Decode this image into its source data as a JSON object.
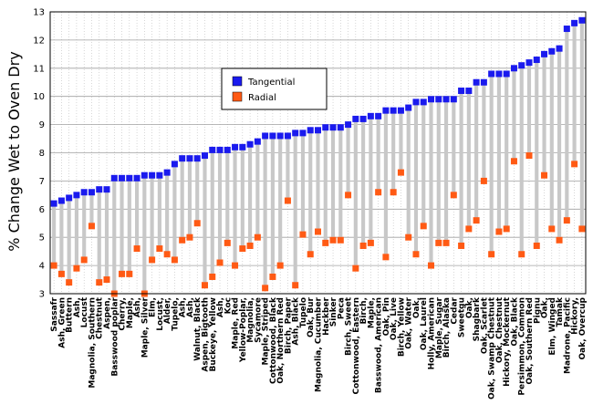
{
  "chart_data": {
    "type": "scatter",
    "title": "",
    "xlabel": "",
    "ylabel": "% Change  Wet to Oven Dry",
    "ylim": [
      3,
      13
    ],
    "yticks": [
      3,
      4,
      5,
      6,
      7,
      8,
      9,
      10,
      11,
      12,
      13
    ],
    "grid": true,
    "legend_position": "upper-left-center",
    "colors": {
      "tangential": "#1a1aee",
      "radial": "#ff5a14",
      "range_bar": "#c8c8c8",
      "grid": "#bdbdbd"
    },
    "categories": [
      "Sassafr",
      "Ash, Green",
      "Buttern",
      "Ash,",
      "Locust",
      "Magnolia, Southern",
      "Chestnut",
      "Aspen,",
      "Basswood poplar",
      "Cherry,",
      "Maple,",
      "Ash,",
      "Maple, Silver",
      "Elm,",
      "Locust,",
      "Alder,",
      "Tupelo,",
      "Ash,",
      "Ash,",
      "Walnut, Black",
      "Aspen, Bigtooth",
      "Buckeye, Yellow",
      "Ash,",
      "Koc",
      "Maple, Red",
      "Yellow-Poplar,",
      "Magnolia,",
      "Sycamore",
      "Maple, Striped",
      "Cottonwood, Black",
      "Oak, Northern Red",
      "Birch, Paper",
      "Ash, Black",
      "Tupelo",
      "Oak, Bur",
      "Magnolia, Cucumber",
      "Hackber",
      "Sinker",
      "Peca",
      "Birch, Sweet",
      "Cottonwood, Eastern",
      "Birch,",
      "Maple,",
      "Basswood, American",
      "Oak, Pin",
      "Oak, Live",
      "Birch, Yellow",
      "Oak, Water",
      "Oak,",
      "Oak, Laurel",
      "Holly, American",
      "Maple, Sugar",
      "Birch, Alaska",
      "Cedar",
      "Sweetgu",
      "Oak,",
      "Shagbark",
      "Oak, Scarlet",
      "Oak, Swamp Chestnut",
      "Oak, Chestnut",
      "Hickory, Mockernut",
      "Oak, Black",
      "Persimmon, Common",
      "Oak, Southern Red",
      "Pignu",
      "Oak,",
      "Elm, Winged",
      "Tamak",
      "Madrone, Pacific",
      "Hickory,",
      "Oak, Overcup"
    ],
    "series": [
      {
        "name": "Tangential",
        "values": [
          6.2,
          6.3,
          6.4,
          6.5,
          6.6,
          6.6,
          6.7,
          6.7,
          7.1,
          7.1,
          7.1,
          7.1,
          7.2,
          7.2,
          7.2,
          7.3,
          7.6,
          7.8,
          7.8,
          7.8,
          7.9,
          8.1,
          8.1,
          8.1,
          8.2,
          8.2,
          8.3,
          8.4,
          8.6,
          8.6,
          8.6,
          8.6,
          8.7,
          8.7,
          8.8,
          8.8,
          8.9,
          8.9,
          8.9,
          9.0,
          9.2,
          9.2,
          9.3,
          9.3,
          9.5,
          9.5,
          9.5,
          9.6,
          9.8,
          9.8,
          9.9,
          9.9,
          9.9,
          9.9,
          10.2,
          10.2,
          10.5,
          10.5,
          10.8,
          10.8,
          10.8,
          11.0,
          11.1,
          11.2,
          11.3,
          11.5,
          11.6,
          11.7,
          12.4,
          12.6,
          12.7
        ]
      },
      {
        "name": "Radial",
        "values": [
          4.0,
          3.7,
          3.4,
          3.9,
          4.2,
          5.4,
          3.4,
          3.5,
          3.0,
          3.7,
          3.7,
          4.6,
          3.0,
          4.2,
          4.6,
          4.4,
          4.2,
          4.9,
          5.0,
          5.5,
          3.3,
          3.6,
          4.1,
          4.8,
          4.0,
          4.6,
          4.7,
          5.0,
          3.2,
          3.6,
          4.0,
          6.3,
          3.3,
          5.1,
          4.4,
          5.2,
          4.8,
          4.9,
          4.9,
          6.5,
          3.9,
          4.7,
          4.8,
          6.6,
          4.3,
          6.6,
          7.3,
          5.0,
          4.4,
          5.4,
          4.0,
          4.8,
          4.8,
          6.5,
          4.7,
          5.3,
          5.6,
          7.0,
          4.4,
          5.2,
          5.3,
          7.7,
          4.4,
          7.9,
          4.7,
          7.2,
          5.3,
          4.9,
          5.6,
          7.6,
          5.3
        ]
      }
    ]
  }
}
